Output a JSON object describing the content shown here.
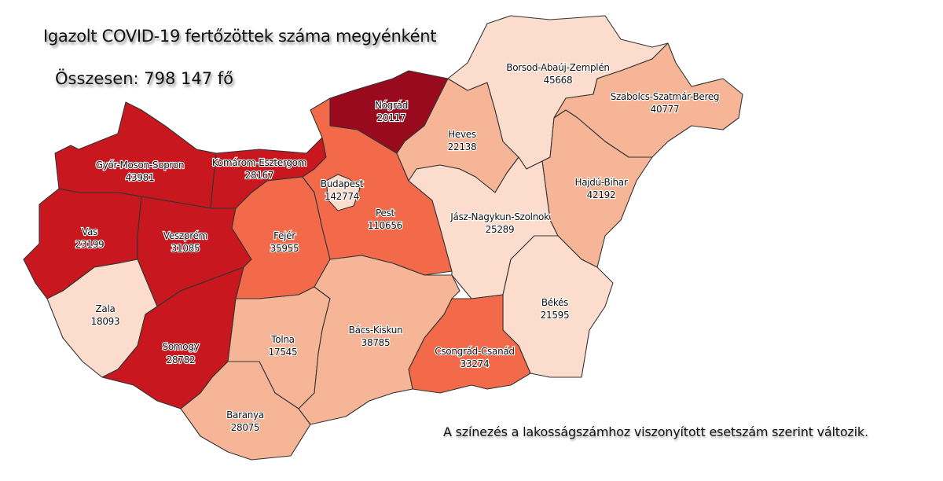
{
  "title": "Igazolt COVID-19 fertőzöttek száma megyénként",
  "total": "Összesen: 798 147 fő",
  "note": "A színezés a lakosságszámhoz viszonyított esetszám szerint változik.",
  "colors": {
    "level1": "#fcdccc",
    "level2": "#f6b596",
    "level3": "#f36a4b",
    "level4": "#c8171e",
    "level5": "#990a1f",
    "border": "#333333"
  },
  "counties": {
    "gyor": {
      "name": "Győr-Moson-Sopron",
      "value": "43981",
      "level": 4
    },
    "komarom": {
      "name": "Komárom-Esztergom",
      "value": "28167",
      "level": 4
    },
    "vas": {
      "name": "Vas",
      "value": "23199",
      "level": 4
    },
    "veszprem": {
      "name": "Veszprém",
      "value": "31085",
      "level": 4
    },
    "zala": {
      "name": "Zala",
      "value": "18093",
      "level": 1
    },
    "somogy": {
      "name": "Somogy",
      "value": "28782",
      "level": 4
    },
    "fejer": {
      "name": "Fejér",
      "value": "35955",
      "level": 3
    },
    "tolna": {
      "name": "Tolna",
      "value": "17545",
      "level": 2
    },
    "baranya": {
      "name": "Baranya",
      "value": "28075",
      "level": 2
    },
    "pest": {
      "name": "Pest",
      "value": "110656",
      "level": 3
    },
    "budapest": {
      "name": "Budapest",
      "value": "142774",
      "level": 1
    },
    "nograd": {
      "name": "Nógrád",
      "value": "20117",
      "level": 5
    },
    "heves": {
      "name": "Heves",
      "value": "22138",
      "level": 2
    },
    "borsod": {
      "name": "Borsod-Abaúj-Zemplén",
      "value": "45668",
      "level": 1
    },
    "szabolcs": {
      "name": "Szabolcs-Szatmár-Bereg",
      "value": "40777",
      "level": 2
    },
    "hajdu": {
      "name": "Hajdú-Bihar",
      "value": "42192",
      "level": 2
    },
    "jasz": {
      "name": "Jász-Nagykun-Szolnok",
      "value": "25289",
      "level": 1
    },
    "bekes": {
      "name": "Békés",
      "value": "21595",
      "level": 1
    },
    "csongrad": {
      "name": "Csongrád-Csanád",
      "value": "33274",
      "level": 3
    },
    "bacs": {
      "name": "Bács-Kiskun",
      "value": "38785",
      "level": 2
    }
  }
}
